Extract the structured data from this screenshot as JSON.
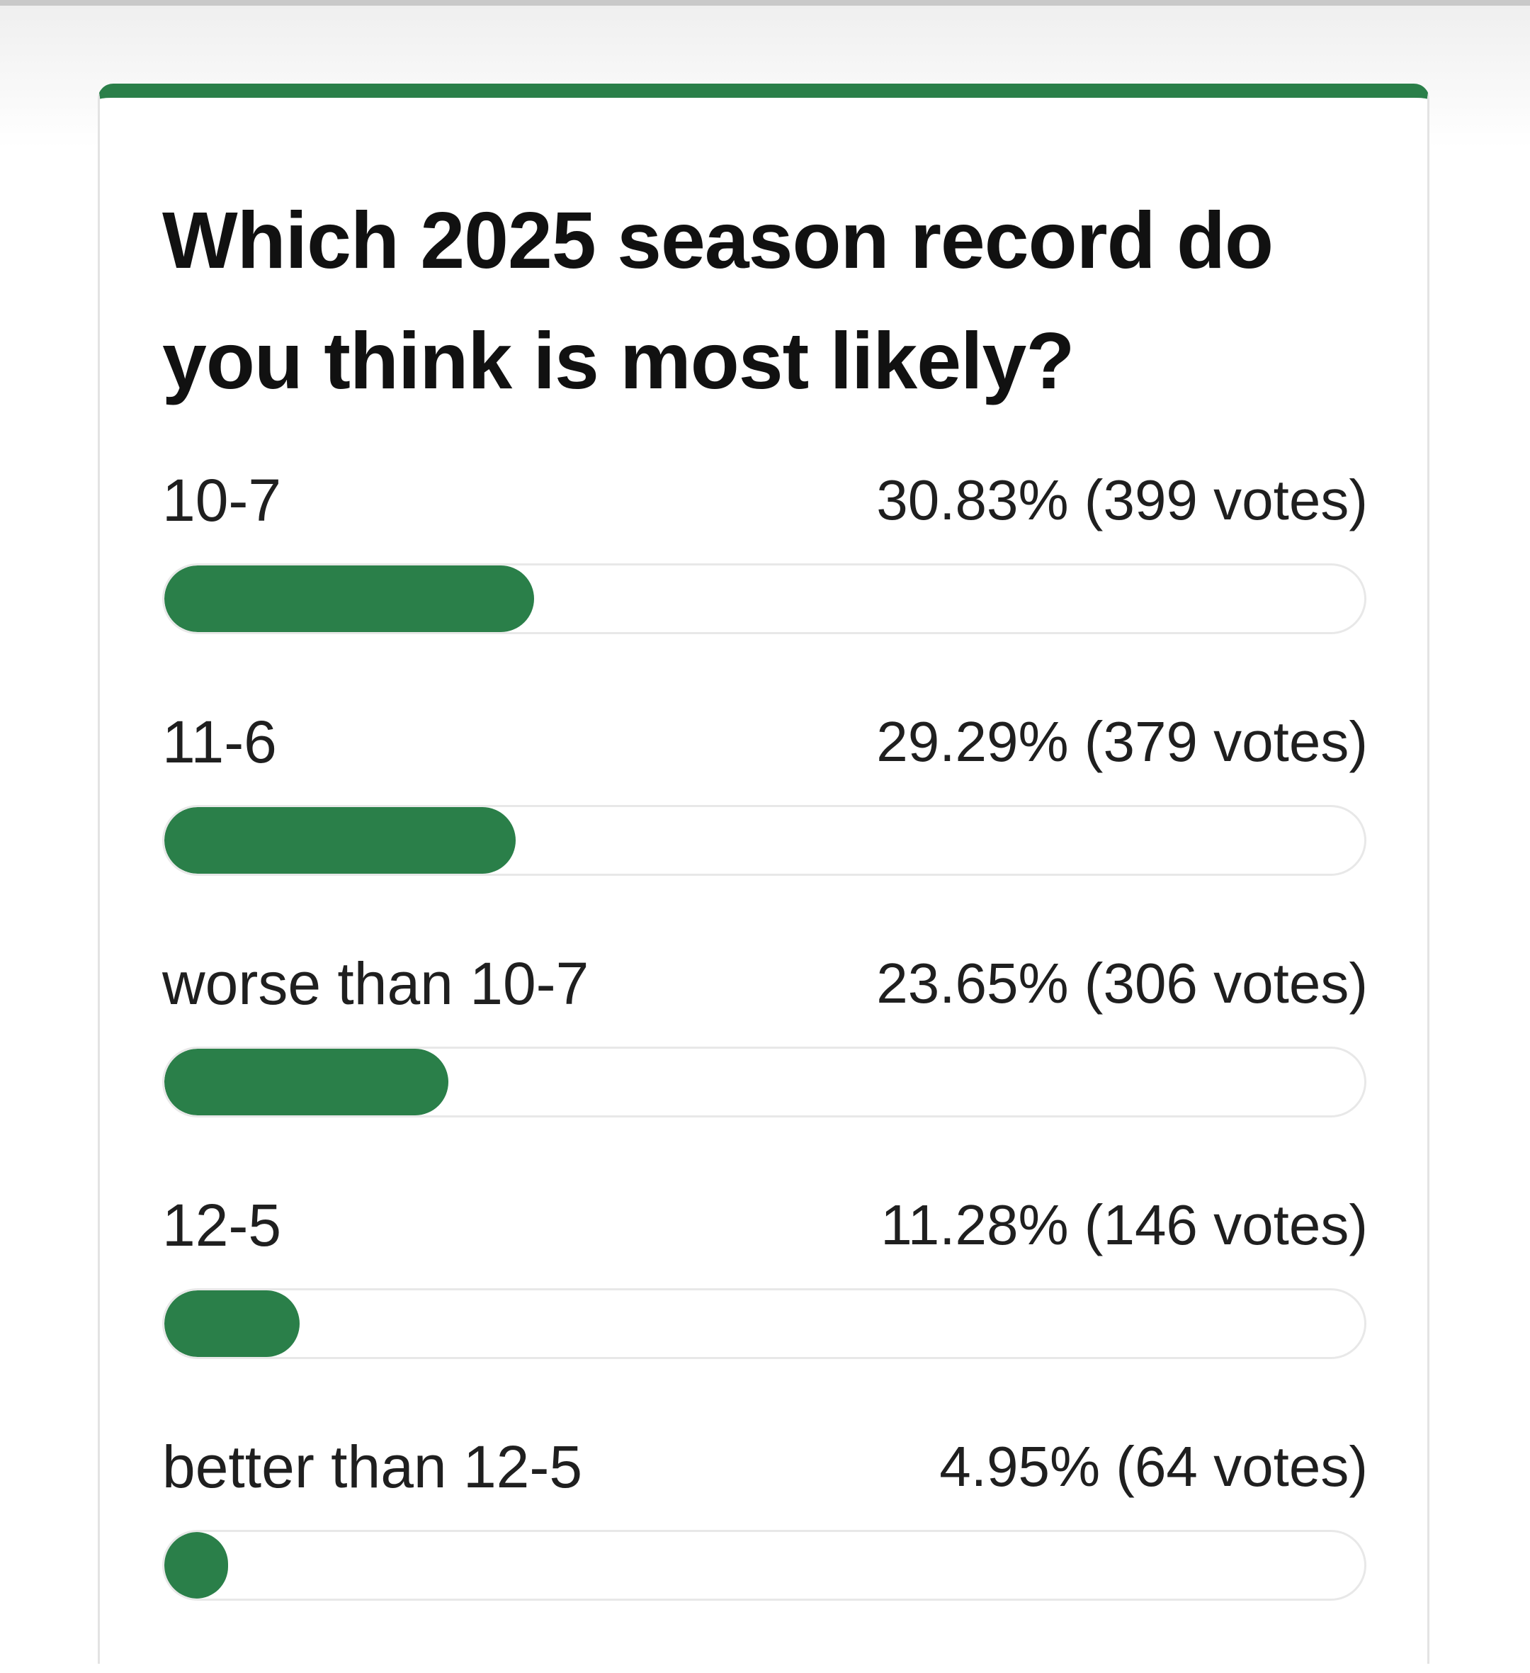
{
  "poll": {
    "question": "Which 2025 season record do you think is most likely?",
    "accent_color": "#2a7f49",
    "options": [
      {
        "label": "10-7",
        "result": "30.83% (399 votes)",
        "percent": 30.83,
        "votes": 399
      },
      {
        "label": "11-6",
        "result": "29.29% (379 votes)",
        "percent": 29.29,
        "votes": 379
      },
      {
        "label": "worse than 10-7",
        "result": "23.65% (306 votes)",
        "percent": 23.65,
        "votes": 306
      },
      {
        "label": "12-5",
        "result": "11.28% (146 votes)",
        "percent": 11.28,
        "votes": 146
      },
      {
        "label": "better than 12-5",
        "result": "4.95% (64 votes)",
        "percent": 4.95,
        "votes": 64
      }
    ]
  }
}
